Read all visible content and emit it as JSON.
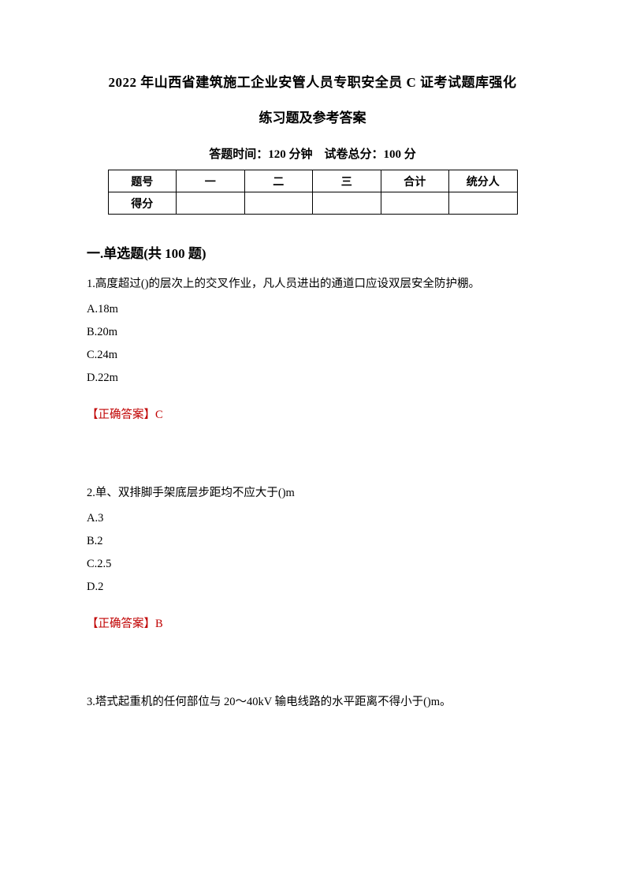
{
  "title_line1": "2022 年山西省建筑施工企业安管人员专职安全员 C 证考试题库强化",
  "title_line2": "练习题及参考答案",
  "exam_info": "答题时间：120 分钟　试卷总分：100 分",
  "score_table": {
    "row1": [
      "题号",
      "一",
      "二",
      "三",
      "合计",
      "统分人"
    ],
    "row2": [
      "得分",
      "",
      "",
      "",
      "",
      ""
    ]
  },
  "section_title": "一.单选题(共 100 题)",
  "questions": [
    {
      "text": "1.高度超过()的层次上的交叉作业，凡人员进出的通道口应设双层安全防护棚。",
      "options": [
        "A.18m",
        "B.20m",
        "C.24m",
        "D.22m"
      ],
      "answer": "【正确答案】C"
    },
    {
      "text": "2.单、双排脚手架底层步距均不应大于()m",
      "options": [
        "A.3",
        "B.2",
        "C.2.5",
        "D.2"
      ],
      "answer": "【正确答案】B"
    },
    {
      "text": "3.塔式起重机的任何部位与 20～40kV 输电线路的水平距离不得小于()m。",
      "options": [],
      "answer": ""
    }
  ],
  "colors": {
    "text": "#000000",
    "answer": "#c00000",
    "background": "#ffffff",
    "border": "#000000"
  },
  "fonts": {
    "title_size": 17,
    "body_size": 14.5,
    "table_size": 14,
    "family": "SimSun"
  }
}
